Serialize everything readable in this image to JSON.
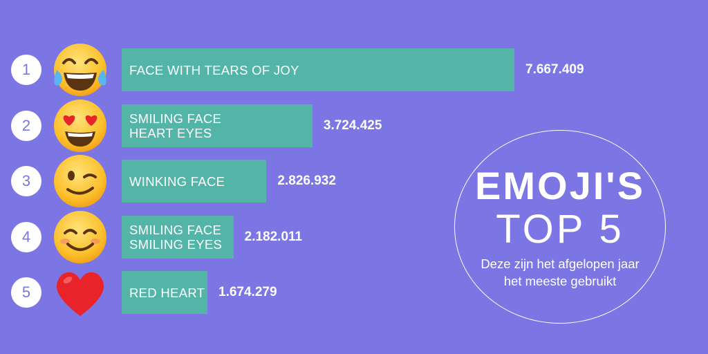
{
  "chart_data": {
    "type": "bar",
    "orientation": "horizontal",
    "categories": [
      [
        "FACE WITH TEARS OF JOY"
      ],
      [
        "SMILING FACE",
        "HEART EYES"
      ],
      [
        "WINKING FACE"
      ],
      [
        "SMILING FACE",
        "SMILING EYES"
      ],
      [
        "RED HEART"
      ]
    ],
    "ranks": [
      "1",
      "2",
      "3",
      "4",
      "5"
    ],
    "values": [
      7667409,
      3724425,
      2826932,
      2182011,
      1674279
    ],
    "value_labels": [
      "7.667.409",
      "3.724.425",
      "2.826.932",
      "2.182.011",
      "1.674.279"
    ],
    "icons": [
      "face-with-tears-of-joy-icon",
      "smiling-face-heart-eyes-icon",
      "winking-face-icon",
      "smiling-face-smiling-eyes-icon",
      "red-heart-icon"
    ],
    "title": "EMOJI'S",
    "subtitle": "TOP 5",
    "description": "Deze zijn het afgelopen jaar het meeste gebruikt",
    "xlim": [
      0,
      7667409
    ],
    "grid": false,
    "legend": "none"
  },
  "colors": {
    "background": "#7b76e4",
    "bar": "#52b5a8",
    "text": "#ffffff",
    "rank_text": "#7b76e4"
  }
}
